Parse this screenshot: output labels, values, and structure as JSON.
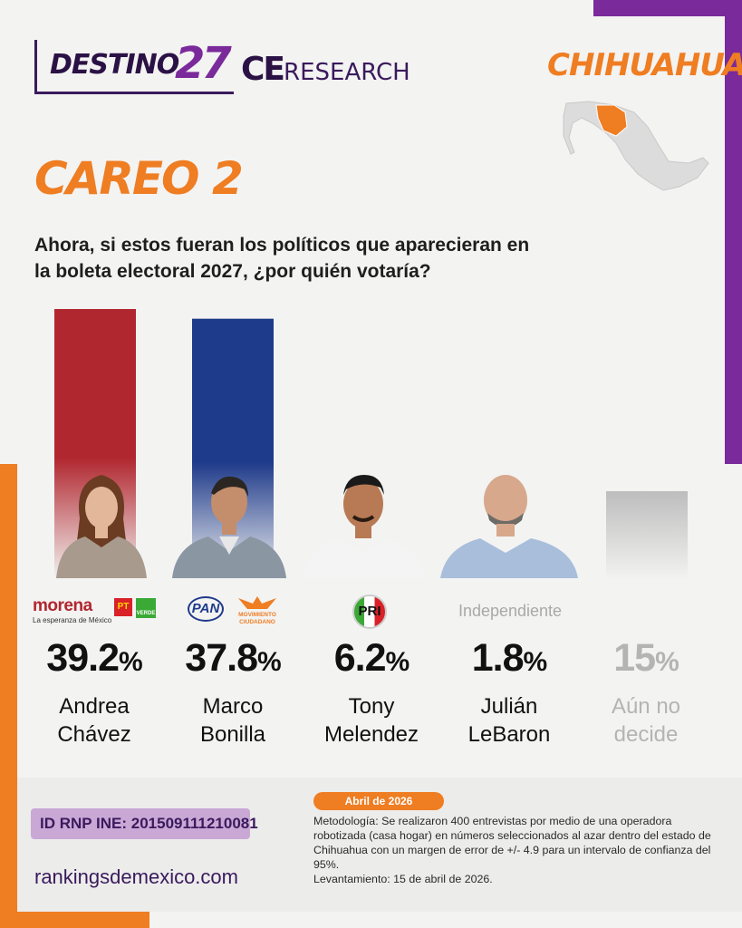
{
  "header": {
    "brand_main": "DESTINO",
    "brand_num": "27",
    "brand_ce": "CE",
    "brand_research": "RESEARCH",
    "state": "CHIHUAHUA"
  },
  "section_title": "CAREO 2",
  "question": "Ahora, si estos fueran los políticos que aparecieran en la boleta electoral 2027, ¿por quién votaría?",
  "colors": {
    "accent_orange": "#ef7d22",
    "accent_purple": "#7a2a9a",
    "morena_red": "#b1272f",
    "pan_blue": "#1e3a8a",
    "pri_red": "#d92128",
    "undecided_gray": "#c6c6c6"
  },
  "chart_data": {
    "type": "bar",
    "categories": [
      "Andrea Chávez",
      "Marco Bonilla",
      "Tony Melendez",
      "Julián LeBaron",
      "Aún no decide"
    ],
    "values": [
      39.2,
      37.8,
      6.2,
      1.8,
      15
    ],
    "unit": "%",
    "parties": [
      "morena / PT / VERDE",
      "PAN / Movimiento Ciudadano",
      "PRI",
      "Independiente",
      ""
    ],
    "ylim": [
      0,
      40
    ]
  },
  "candidates": [
    {
      "pct": "39.2",
      "name1": "Andrea",
      "name2": "Chávez",
      "logo": "morena",
      "logo_sub": "La esperanza de México",
      "logo_pt": "PT",
      "logo_verde": "VERDE"
    },
    {
      "pct": "37.8",
      "name1": "Marco",
      "name2": "Bonilla",
      "logo": "PAN",
      "logo_mc1": "MOVIMIENTO",
      "logo_mc2": "CIUDADANO"
    },
    {
      "pct": "6.2",
      "name1": "Tony",
      "name2": "Melendez",
      "logo": "PRI"
    },
    {
      "pct": "1.8",
      "name1": "Julián",
      "name2": "LeBaron",
      "logo": "Independiente"
    },
    {
      "pct": "15",
      "name1": "Aún no",
      "name2": "decide"
    }
  ],
  "pct_symbol": "%",
  "footer": {
    "rnp": "ID RNP INE: 201509111210081",
    "site": "rankingsdemexico.com",
    "date": "Abril de 2026",
    "methodology": "Metodología: Se realizaron 400 entrevistas por medio de una operadora robotizada (casa hogar) en números seleccionados al azar dentro del estado de Chihuahua con un margen de error de +/- 4.9 para un intervalo de confianza del 95%.",
    "fieldwork": "Levantamiento: 15 de abril de 2026."
  }
}
